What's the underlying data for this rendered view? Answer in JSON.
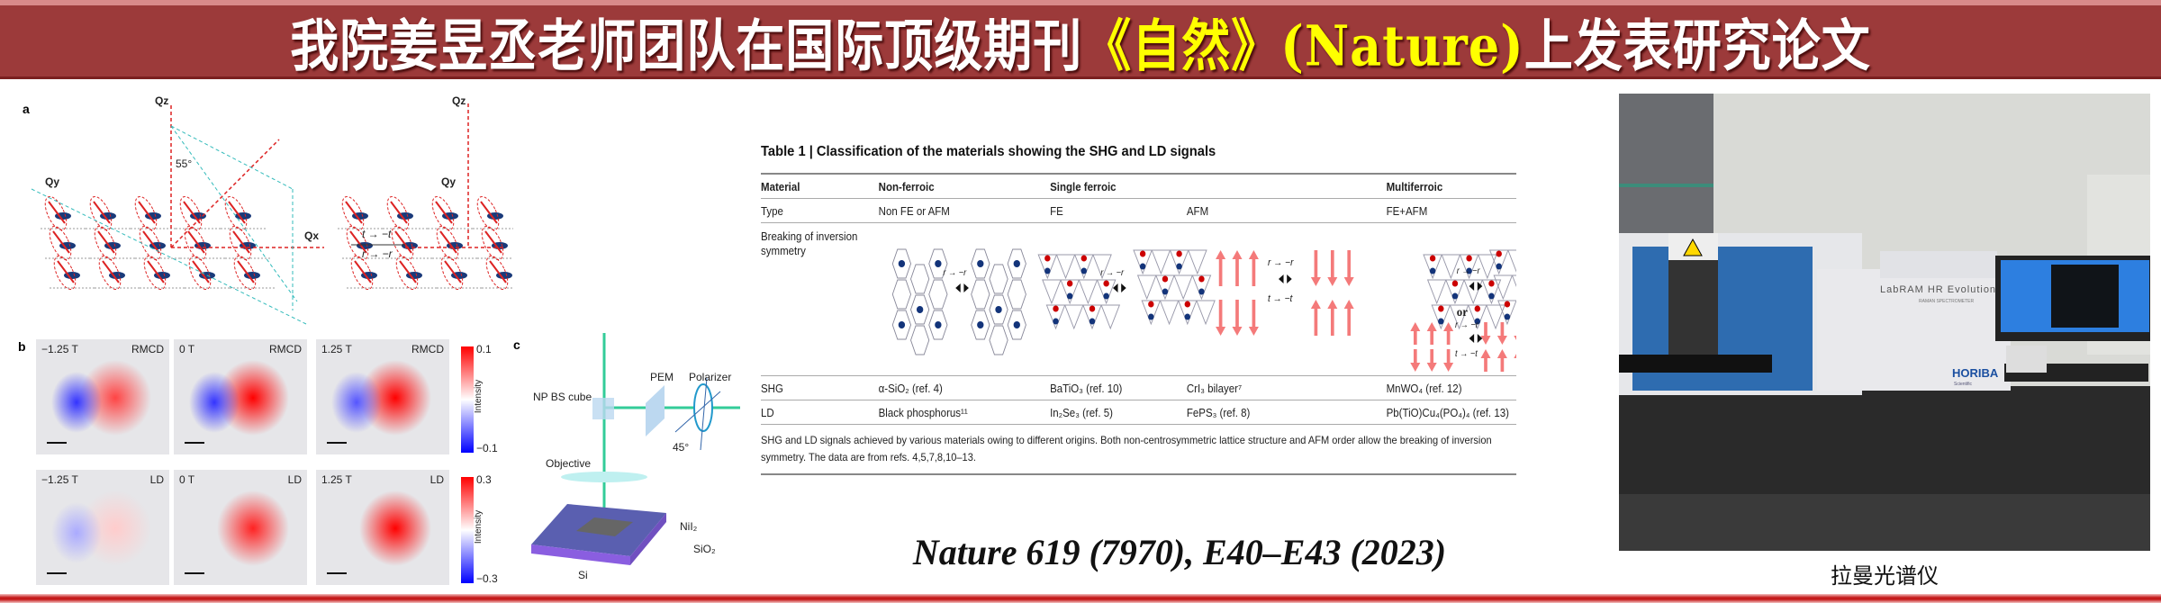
{
  "header": {
    "title_part1": "我院姜昱丞老师团队在国际顶级期刊",
    "title_highlight": "《自然》(Nature)",
    "title_part2": "上发表研究论文"
  },
  "figure": {
    "panel_a": {
      "label": "a",
      "axis_z": "Qz",
      "axis_y": "Qy",
      "axis_x": "Qx",
      "angle": "55°",
      "transform_t": "t → −t",
      "transform_r": "r → −r"
    },
    "panel_b": {
      "label": "b",
      "rows": [
        {
          "type": "RMCD",
          "fields": [
            "−1.25 T",
            "0 T",
            "1.25 T"
          ],
          "cbar_max": "0.1",
          "cbar_min": "−0.1"
        },
        {
          "type": "LD",
          "fields": [
            "−1.25 T",
            "0 T",
            "1.25 T"
          ],
          "cbar_max": "0.3",
          "cbar_min": "−0.3"
        }
      ],
      "cbar_label": "Intensity"
    },
    "panel_c": {
      "label": "c",
      "parts": {
        "bs": "NP BS cube",
        "pem": "PEM",
        "polarizer": "Polarizer",
        "angle": "45°",
        "objective": "Objective",
        "nii2": "NiI₂",
        "sio2": "SiO₂",
        "si": "Si"
      }
    }
  },
  "table": {
    "title": "Table 1 | Classification of the materials showing the SHG and LD signals",
    "header": [
      "Material",
      "Non-ferroic",
      "Single ferroic",
      "",
      "Multiferroic"
    ],
    "rows": [
      [
        "Type",
        "Non FE or AFM",
        "FE",
        "AFM",
        "FE+AFM"
      ],
      [
        "Breaking of inversion symmetry",
        "",
        "",
        "",
        ""
      ],
      [
        "SHG",
        "α-SiO₂ (ref. 4)",
        "BaTiO₃ (ref. 10)",
        "CrI₃ bilayer⁷",
        "MnWO₄ (ref. 12)"
      ],
      [
        "LD",
        "Black phosphorus¹¹",
        "In₂Se₃ (ref. 5)",
        "FePS₃ (ref. 8)",
        "Pb(TiO)Cu₄(PO₄)₄ (ref. 13)"
      ]
    ],
    "diagram_labels": {
      "r": "r → −r",
      "t": "t → −t",
      "or": "or"
    },
    "caption": "SHG and LD signals achieved by various materials owing to different origins. Both non-centrosymmetric lattice structure and AFM order allow the breaking of inversion symmetry. The data are from refs. 4,5,7,8,10–13."
  },
  "citation": "Nature 619 (7970), E40–E43 (2023)",
  "photo": {
    "brand": "HORIBA",
    "brand_sub": "Scientific",
    "model": "LabRAM HR Evolution",
    "model_sub": "RAMAN SPECTROMETER",
    "caption": "拉曼光谱仪"
  },
  "colors": {
    "header_bg": "#9c3a3a",
    "highlight": "#ffff00",
    "accent_red": "#c41a1a"
  }
}
